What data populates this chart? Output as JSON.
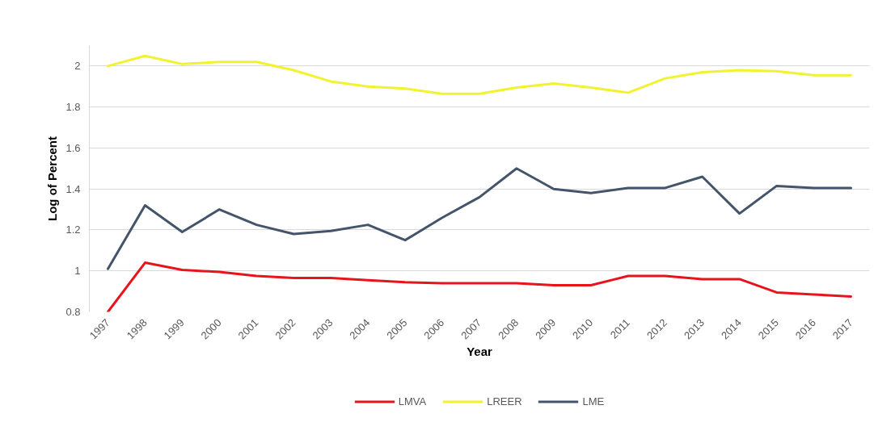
{
  "chart_data": {
    "type": "line",
    "xlabel": "Year",
    "ylabel": "Log of Percent",
    "categories": [
      "1997",
      "1998",
      "1999",
      "2000",
      "2001",
      "2002",
      "2003",
      "2004",
      "2005",
      "2006",
      "2007",
      "2008",
      "2009",
      "2010",
      "2011",
      "2012",
      "2013",
      "2014",
      "2015",
      "2016",
      "2017"
    ],
    "series": [
      {
        "name": "LMVA",
        "color": "#e8141c",
        "values": [
          0.8,
          1.04,
          1.005,
          0.995,
          0.975,
          0.965,
          0.965,
          0.955,
          0.945,
          0.94,
          0.94,
          0.94,
          0.93,
          0.93,
          0.975,
          0.975,
          0.96,
          0.96,
          0.895,
          0.885,
          0.875
        ]
      },
      {
        "name": "LREER",
        "color": "#f2f230",
        "values": [
          2.0,
          2.05,
          2.01,
          2.02,
          2.02,
          1.98,
          1.925,
          1.9,
          1.89,
          1.865,
          1.865,
          1.895,
          1.915,
          1.895,
          1.87,
          1.94,
          1.97,
          1.98,
          1.975,
          1.955,
          1.955
        ]
      },
      {
        "name": "LME",
        "color": "#44546a",
        "values": [
          1.01,
          1.32,
          1.19,
          1.3,
          1.225,
          1.18,
          1.195,
          1.225,
          1.15,
          1.26,
          1.36,
          1.5,
          1.4,
          1.38,
          1.405,
          1.405,
          1.46,
          1.28,
          1.415,
          1.405,
          1.405
        ]
      }
    ],
    "ylim": [
      0.8,
      2.1
    ],
    "yticks": [
      0.8,
      1,
      1.2,
      1.4,
      1.6,
      1.8,
      2
    ],
    "grid": "y",
    "legend": "bottom"
  }
}
